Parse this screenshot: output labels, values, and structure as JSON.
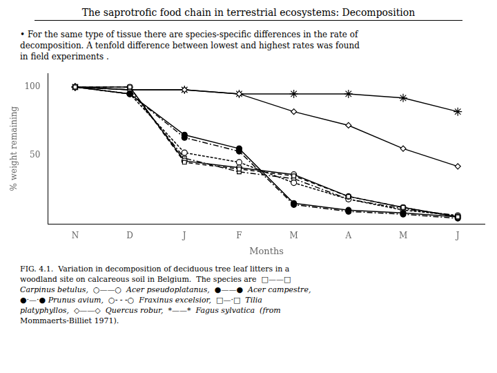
{
  "chart_data": {
    "type": "line",
    "title": "The saprotrofic food chain in terrestrial ecosystems: Decomposition",
    "subtitle": "• For the same type of tissue there are species-specific differences in the rate of\ndecomposition. A tenfold difference between lowest and highest rates was found\nin field experiments .",
    "xlabel": "Months",
    "ylabel": "% weight remaining",
    "categories": [
      "N",
      "D",
      "J",
      "F",
      "M",
      "A",
      "M",
      "J"
    ],
    "ylim": [
      0,
      110
    ],
    "yticks": [
      50,
      100
    ],
    "grid": false,
    "series": [
      {
        "name": "Carpinus betulus",
        "color": "#000000",
        "values": [
          100,
          100,
          45,
          40,
          35,
          20,
          12,
          5
        ],
        "marker": "open square",
        "line_style": "dashed"
      },
      {
        "name": "Acer pseudoplatanus",
        "color": "#000000",
        "values": [
          100,
          100,
          46,
          41,
          36,
          20,
          12,
          5
        ],
        "marker": "open circle",
        "line_style": "solid"
      },
      {
        "name": "Acer campestre",
        "color": "#000000",
        "values": [
          100,
          95,
          65,
          55,
          15,
          10,
          8,
          5
        ],
        "marker": "filled circle",
        "line_style": "solid"
      },
      {
        "name": "Prunus avium",
        "color": "#000000",
        "values": [
          100,
          95,
          63,
          53,
          14,
          9,
          7,
          4
        ],
        "marker": "filled circle",
        "line_style": "dash-dot"
      },
      {
        "name": "Fraxinus excelsior",
        "color": "#000000",
        "values": [
          100,
          95,
          52,
          45,
          30,
          18,
          10,
          6
        ],
        "marker": "open circle",
        "line_style": "densely dashed"
      },
      {
        "name": "Tilia platyphyllos",
        "color": "#000000",
        "values": [
          100,
          98,
          48,
          38,
          33,
          18,
          11,
          6
        ],
        "marker": "open square",
        "line_style": "dash-dot"
      },
      {
        "name": "Quercus robur",
        "color": "#000000",
        "values": [
          100,
          98,
          98,
          95,
          82,
          72,
          55,
          42
        ],
        "marker": "open diamond",
        "line_style": "solid"
      },
      {
        "name": "Fagus sylvatica",
        "color": "#000000",
        "values": [
          100,
          98,
          98,
          95,
          95,
          95,
          92,
          82
        ],
        "marker": "filled star",
        "line_style": "solid"
      }
    ],
    "annotations": [
      "FIG. 4.1.  Variation in decomposition of deciduous tree leaf litters in a",
      "woodland site on calcareous soil in Belgium.  The species are  □——□",
      "Carpinus betulus,  ○——○  Acer pseudoplatanus,  ●——●  Acer campestre,",
      "●·—·● Prunus avium,  ○- - -○  Fraxinus excelsior,  □—·□  Tilia",
      "platyphyllos,  ◇——◇  Quercus robur,  *——*  Fagus sylvatica  (from",
      "Mommaerts-Billiet 1971)."
    ]
  }
}
